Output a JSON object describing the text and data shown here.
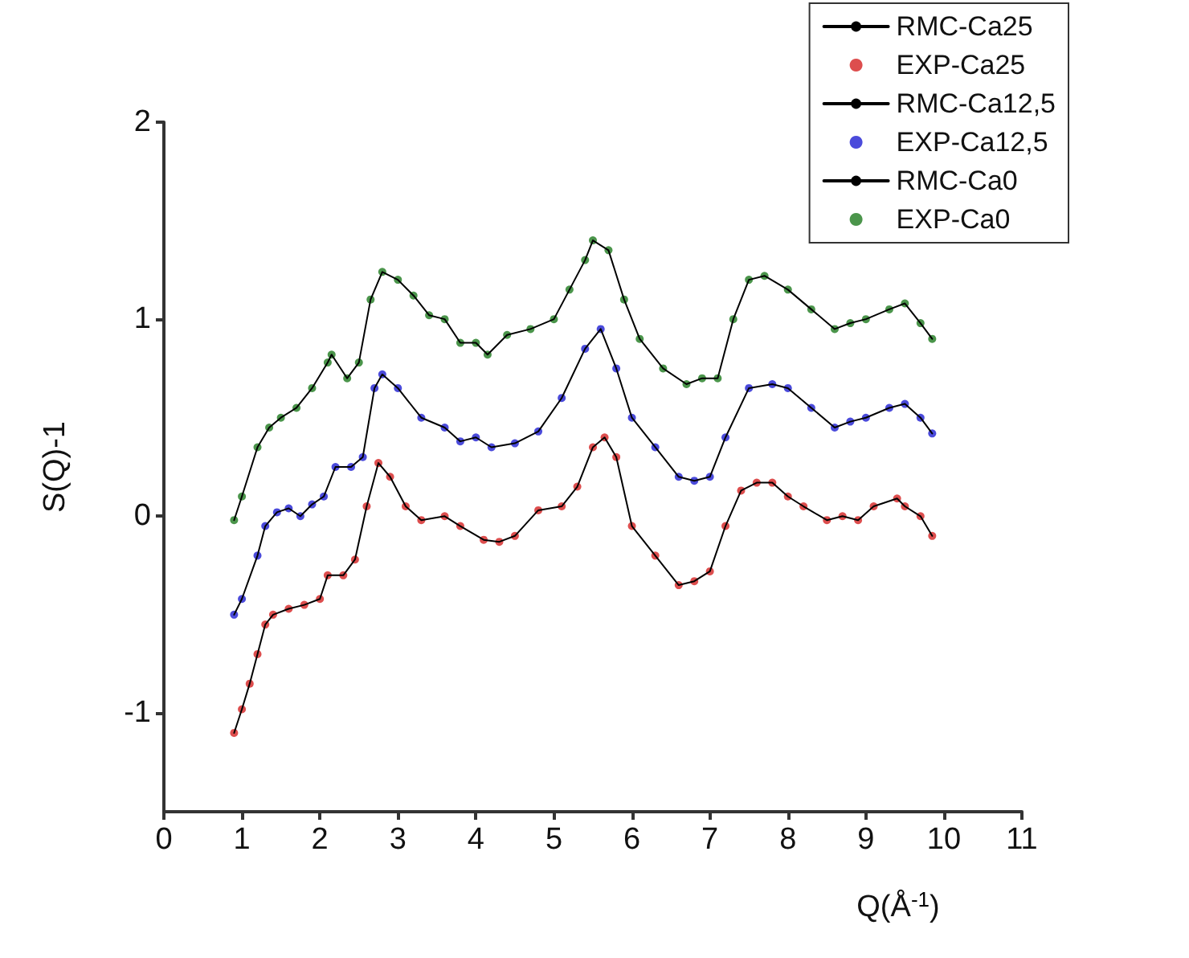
{
  "chart_data": {
    "type": "line",
    "xlabel": "Q(Å$^{-1}$)",
    "ylabel": "S(Q)-1",
    "xlim": [
      0,
      11
    ],
    "xticks": [
      0,
      1,
      2,
      3,
      4,
      5,
      6,
      7,
      8,
      9,
      10,
      11
    ],
    "ylim": [
      -1.5,
      2
    ],
    "yticks": [
      -1,
      0,
      1,
      2
    ],
    "grid": false,
    "legend": "top right",
    "series": [
      {
        "name": "RMC-Ca25",
        "marker": "none",
        "color": "#000000",
        "x": [
          0.9,
          1.0,
          1.1,
          1.2,
          1.3,
          1.4,
          1.6,
          1.8,
          2.0,
          2.1,
          2.3,
          2.45,
          2.6,
          2.75,
          2.9,
          3.1,
          3.3,
          3.6,
          3.8,
          4.1,
          4.3,
          4.5,
          4.8,
          5.1,
          5.3,
          5.5,
          5.65,
          5.8,
          6.0,
          6.3,
          6.6,
          6.8,
          7.0,
          7.2,
          7.4,
          7.6,
          7.8,
          8.0,
          8.2,
          8.5,
          8.7,
          8.9,
          9.1,
          9.4,
          9.5,
          9.7,
          9.85
        ],
        "values": [
          -1.1,
          -0.98,
          -0.85,
          -0.7,
          -0.55,
          -0.5,
          -0.47,
          -0.45,
          -0.42,
          -0.3,
          -0.3,
          -0.22,
          0.05,
          0.27,
          0.2,
          0.05,
          -0.02,
          0.0,
          -0.05,
          -0.12,
          -0.13,
          -0.1,
          0.03,
          0.05,
          0.15,
          0.35,
          0.4,
          0.3,
          -0.05,
          -0.2,
          -0.35,
          -0.33,
          -0.28,
          -0.05,
          0.13,
          0.17,
          0.17,
          0.1,
          0.05,
          -0.02,
          0.0,
          -0.02,
          0.05,
          0.09,
          0.05,
          0.0,
          -0.1
        ]
      },
      {
        "name": "EXP-Ca25",
        "type": "scatter",
        "marker": "circle",
        "color": "#d42222",
        "x": [
          0.9,
          1.0,
          1.1,
          1.2,
          1.3,
          1.4,
          1.6,
          1.8,
          2.0,
          2.1,
          2.3,
          2.45,
          2.6,
          2.75,
          2.9,
          3.1,
          3.3,
          3.6,
          3.8,
          4.1,
          4.3,
          4.5,
          4.8,
          5.1,
          5.3,
          5.5,
          5.65,
          5.8,
          6.0,
          6.3,
          6.6,
          6.8,
          7.0,
          7.2,
          7.4,
          7.6,
          7.8,
          8.0,
          8.2,
          8.5,
          8.7,
          8.9,
          9.1,
          9.4,
          9.5,
          9.7,
          9.85
        ],
        "values": [
          -1.1,
          -0.98,
          -0.85,
          -0.7,
          -0.55,
          -0.5,
          -0.47,
          -0.45,
          -0.42,
          -0.3,
          -0.3,
          -0.22,
          0.05,
          0.27,
          0.2,
          0.05,
          -0.02,
          0.0,
          -0.05,
          -0.12,
          -0.13,
          -0.1,
          0.03,
          0.05,
          0.15,
          0.35,
          0.4,
          0.3,
          -0.05,
          -0.2,
          -0.35,
          -0.33,
          -0.28,
          -0.05,
          0.13,
          0.17,
          0.17,
          0.1,
          0.05,
          -0.02,
          0.0,
          -0.02,
          0.05,
          0.09,
          0.05,
          0.0,
          -0.1
        ]
      },
      {
        "name": "RMC-Ca12,5",
        "marker": "none",
        "color": "#000000",
        "x": [
          0.9,
          1.0,
          1.2,
          1.3,
          1.45,
          1.6,
          1.75,
          1.9,
          2.05,
          2.2,
          2.4,
          2.55,
          2.7,
          2.8,
          3.0,
          3.3,
          3.6,
          3.8,
          4.0,
          4.2,
          4.5,
          4.8,
          5.1,
          5.4,
          5.6,
          5.8,
          6.0,
          6.3,
          6.6,
          6.8,
          7.0,
          7.2,
          7.5,
          7.8,
          8.0,
          8.3,
          8.6,
          8.8,
          9.0,
          9.3,
          9.5,
          9.7,
          9.85
        ],
        "values": [
          -0.5,
          -0.42,
          -0.2,
          -0.05,
          0.02,
          0.04,
          0.0,
          0.06,
          0.1,
          0.25,
          0.25,
          0.3,
          0.65,
          0.72,
          0.65,
          0.5,
          0.45,
          0.38,
          0.4,
          0.35,
          0.37,
          0.43,
          0.6,
          0.85,
          0.95,
          0.75,
          0.5,
          0.35,
          0.2,
          0.18,
          0.2,
          0.4,
          0.65,
          0.67,
          0.65,
          0.55,
          0.45,
          0.48,
          0.5,
          0.55,
          0.57,
          0.5,
          0.42
        ]
      },
      {
        "name": "EXP-Ca12,5",
        "type": "scatter",
        "marker": "circle",
        "color": "#1e1ed2",
        "x": [
          0.9,
          1.0,
          1.2,
          1.3,
          1.45,
          1.6,
          1.75,
          1.9,
          2.05,
          2.2,
          2.4,
          2.55,
          2.7,
          2.8,
          3.0,
          3.3,
          3.6,
          3.8,
          4.0,
          4.2,
          4.5,
          4.8,
          5.1,
          5.4,
          5.6,
          5.8,
          6.0,
          6.3,
          6.6,
          6.8,
          7.0,
          7.2,
          7.5,
          7.8,
          8.0,
          8.3,
          8.6,
          8.8,
          9.0,
          9.3,
          9.5,
          9.7,
          9.85
        ],
        "values": [
          -0.5,
          -0.42,
          -0.2,
          -0.05,
          0.02,
          0.04,
          0.0,
          0.06,
          0.1,
          0.25,
          0.25,
          0.3,
          0.65,
          0.72,
          0.65,
          0.5,
          0.45,
          0.38,
          0.4,
          0.35,
          0.37,
          0.43,
          0.6,
          0.85,
          0.95,
          0.75,
          0.5,
          0.35,
          0.2,
          0.18,
          0.2,
          0.4,
          0.65,
          0.67,
          0.65,
          0.55,
          0.45,
          0.48,
          0.5,
          0.55,
          0.57,
          0.5,
          0.42
        ]
      },
      {
        "name": "RMC-Ca0",
        "marker": "none",
        "color": "#000000",
        "x": [
          0.9,
          1.0,
          1.2,
          1.35,
          1.5,
          1.7,
          1.9,
          2.1,
          2.15,
          2.35,
          2.5,
          2.65,
          2.8,
          3.0,
          3.2,
          3.4,
          3.6,
          3.8,
          4.0,
          4.15,
          4.4,
          4.7,
          5.0,
          5.2,
          5.4,
          5.5,
          5.7,
          5.9,
          6.1,
          6.4,
          6.7,
          6.9,
          7.1,
          7.3,
          7.5,
          7.7,
          8.0,
          8.3,
          8.6,
          8.8,
          9.0,
          9.3,
          9.5,
          9.7,
          9.85
        ],
        "values": [
          -0.02,
          0.1,
          0.35,
          0.45,
          0.5,
          0.55,
          0.65,
          0.78,
          0.82,
          0.7,
          0.78,
          1.1,
          1.24,
          1.2,
          1.12,
          1.02,
          1.0,
          0.88,
          0.88,
          0.82,
          0.92,
          0.95,
          1.0,
          1.15,
          1.3,
          1.4,
          1.35,
          1.1,
          0.9,
          0.75,
          0.67,
          0.7,
          0.7,
          1.0,
          1.2,
          1.22,
          1.15,
          1.05,
          0.95,
          0.98,
          1.0,
          1.05,
          1.08,
          0.98,
          0.9
        ]
      },
      {
        "name": "EXP-Ca0",
        "type": "scatter",
        "marker": "circle",
        "color": "#1e7a1e",
        "x": [
          0.9,
          1.0,
          1.2,
          1.35,
          1.5,
          1.7,
          1.9,
          2.1,
          2.15,
          2.35,
          2.5,
          2.65,
          2.8,
          3.0,
          3.2,
          3.4,
          3.6,
          3.8,
          4.0,
          4.15,
          4.4,
          4.7,
          5.0,
          5.2,
          5.4,
          5.5,
          5.7,
          5.9,
          6.1,
          6.4,
          6.7,
          6.9,
          7.1,
          7.3,
          7.5,
          7.7,
          8.0,
          8.3,
          8.6,
          8.8,
          9.0,
          9.3,
          9.5,
          9.7,
          9.85
        ],
        "values": [
          -0.02,
          0.1,
          0.35,
          0.45,
          0.5,
          0.55,
          0.65,
          0.78,
          0.82,
          0.7,
          0.78,
          1.1,
          1.24,
          1.2,
          1.12,
          1.02,
          1.0,
          0.88,
          0.88,
          0.82,
          0.92,
          0.95,
          1.0,
          1.15,
          1.3,
          1.4,
          1.35,
          1.1,
          0.9,
          0.75,
          0.67,
          0.7,
          0.7,
          1.0,
          1.2,
          1.22,
          1.15,
          1.05,
          0.95,
          0.98,
          1.0,
          1.05,
          1.08,
          0.98,
          0.9
        ]
      }
    ]
  }
}
